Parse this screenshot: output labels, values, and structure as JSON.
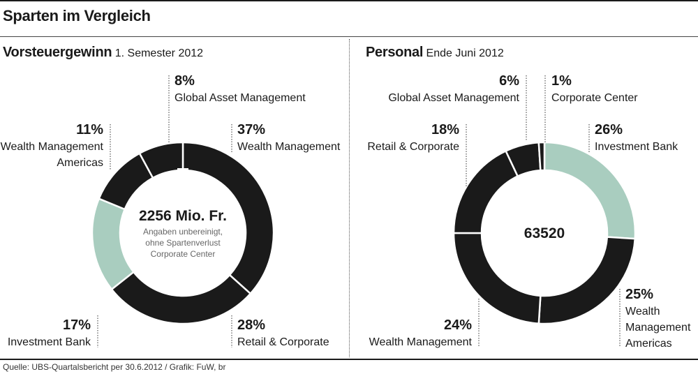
{
  "title": "Sparten im Vergleich",
  "source": "Quelle: UBS-Quartalsbericht per 30.6.2012 / Grafik: FuW, br",
  "colors": {
    "dark": "#1a1a1a",
    "accent": "#a9cdbf",
    "separator": "#ffffff"
  },
  "chart_data": [
    {
      "type": "pie",
      "title": "Vorsteuergewinn",
      "subtitle": "1. Semester 2012",
      "center_value": "2256 Mio. Fr.",
      "center_note": [
        "Angaben unbereinigt,",
        "ohne Spartenverlust",
        "Corporate Center"
      ],
      "slices": [
        {
          "name": "Wealth Management",
          "pct_label": "37%",
          "value": 37,
          "color": "#1a1a1a",
          "label_lines": [
            "Wealth Management"
          ]
        },
        {
          "name": "Retail & Corporate",
          "pct_label": "28%",
          "value": 28,
          "color": "#1a1a1a",
          "label_lines": [
            "Retail & Corporate"
          ]
        },
        {
          "name": "Investment Bank",
          "pct_label": "17%",
          "value": 17,
          "color": "#a9cdbf",
          "label_lines": [
            "Investment Bank"
          ]
        },
        {
          "name": "Wealth Management Americas",
          "pct_label": "11%",
          "value": 11,
          "color": "#1a1a1a",
          "label_lines": [
            "Wealth Management",
            "Americas"
          ]
        },
        {
          "name": "Global Asset Management",
          "pct_label": "8%",
          "value": 8,
          "color": "#1a1a1a",
          "label_lines": [
            "Global Asset Management"
          ]
        }
      ]
    },
    {
      "type": "pie",
      "title": "Personal",
      "subtitle": "Ende Juni 2012",
      "center_value": "63520",
      "center_note": [],
      "slices": [
        {
          "name": "Investment Bank",
          "pct_label": "26%",
          "value": 26,
          "color": "#a9cdbf",
          "label_lines": [
            "Investment Bank"
          ]
        },
        {
          "name": "Wealth Management Americas",
          "pct_label": "25%",
          "value": 25,
          "color": "#1a1a1a",
          "label_lines": [
            "Wealth",
            "Management",
            "Americas"
          ]
        },
        {
          "name": "Wealth Management",
          "pct_label": "24%",
          "value": 24,
          "color": "#1a1a1a",
          "label_lines": [
            "Wealth Management"
          ]
        },
        {
          "name": "Retail & Corporate",
          "pct_label": "18%",
          "value": 18,
          "color": "#1a1a1a",
          "label_lines": [
            "Retail & Corporate"
          ]
        },
        {
          "name": "Global Asset Management",
          "pct_label": "6%",
          "value": 6,
          "color": "#1a1a1a",
          "label_lines": [
            "Global Asset Management"
          ]
        },
        {
          "name": "Corporate Center",
          "pct_label": "1%",
          "value": 1,
          "color": "#1a1a1a",
          "label_lines": [
            "Corporate Center"
          ]
        }
      ]
    }
  ]
}
